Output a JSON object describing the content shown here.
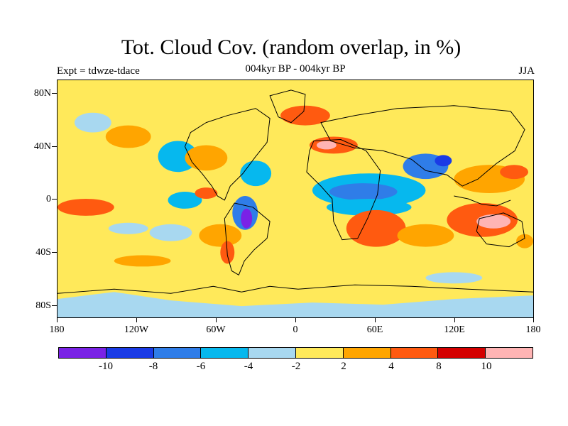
{
  "title": "Tot. Cloud Cov. (random overlap, in %)",
  "subtitle": "004kyr BP - 004kyr BP",
  "left_label": "Expt = tdwze-tdace",
  "right_label": "JJA",
  "lat_labels": [
    "80N",
    "40N",
    "0",
    "40S",
    "80S"
  ],
  "lon_labels": [
    "180",
    "120W",
    "60W",
    "0",
    "60E",
    "120E",
    "180"
  ],
  "colorbar": {
    "labels": [
      "-10",
      "-8",
      "-6",
      "-4",
      "-2",
      "2",
      "4",
      "8",
      "10"
    ],
    "colors": [
      "#7a22e6",
      "#1a3be6",
      "#2f7de8",
      "#06b8ee",
      "#a8d8f0",
      "#ffe95a",
      "#ffa500",
      "#ff5a10",
      "#d40000",
      "#ffb4b4"
    ]
  },
  "chart_data": {
    "type": "heatmap",
    "title": "Tot. Cloud Cov. (random overlap, in %)",
    "subtitle": "004kyr BP - 004kyr BP",
    "experiment": "Expt = tdwze-tdace",
    "season": "JJA",
    "x_axis": {
      "ticks": [
        "180",
        "120W",
        "60W",
        "0",
        "60E",
        "120E",
        "180"
      ],
      "range": [
        -180,
        180
      ]
    },
    "y_axis": {
      "ticks": [
        "80N",
        "40N",
        "0",
        "40S",
        "80S"
      ],
      "range": [
        -90,
        90
      ]
    },
    "levels": [
      -10,
      -8,
      -6,
      -4,
      -2,
      2,
      4,
      8,
      10
    ],
    "colors": [
      "#7a22e6",
      "#1a3be6",
      "#2f7de8",
      "#06b8ee",
      "#a8d8f0",
      "#ffe95a",
      "#ffa500",
      "#ff5a10",
      "#d40000",
      "#ffb4b4"
    ]
  }
}
